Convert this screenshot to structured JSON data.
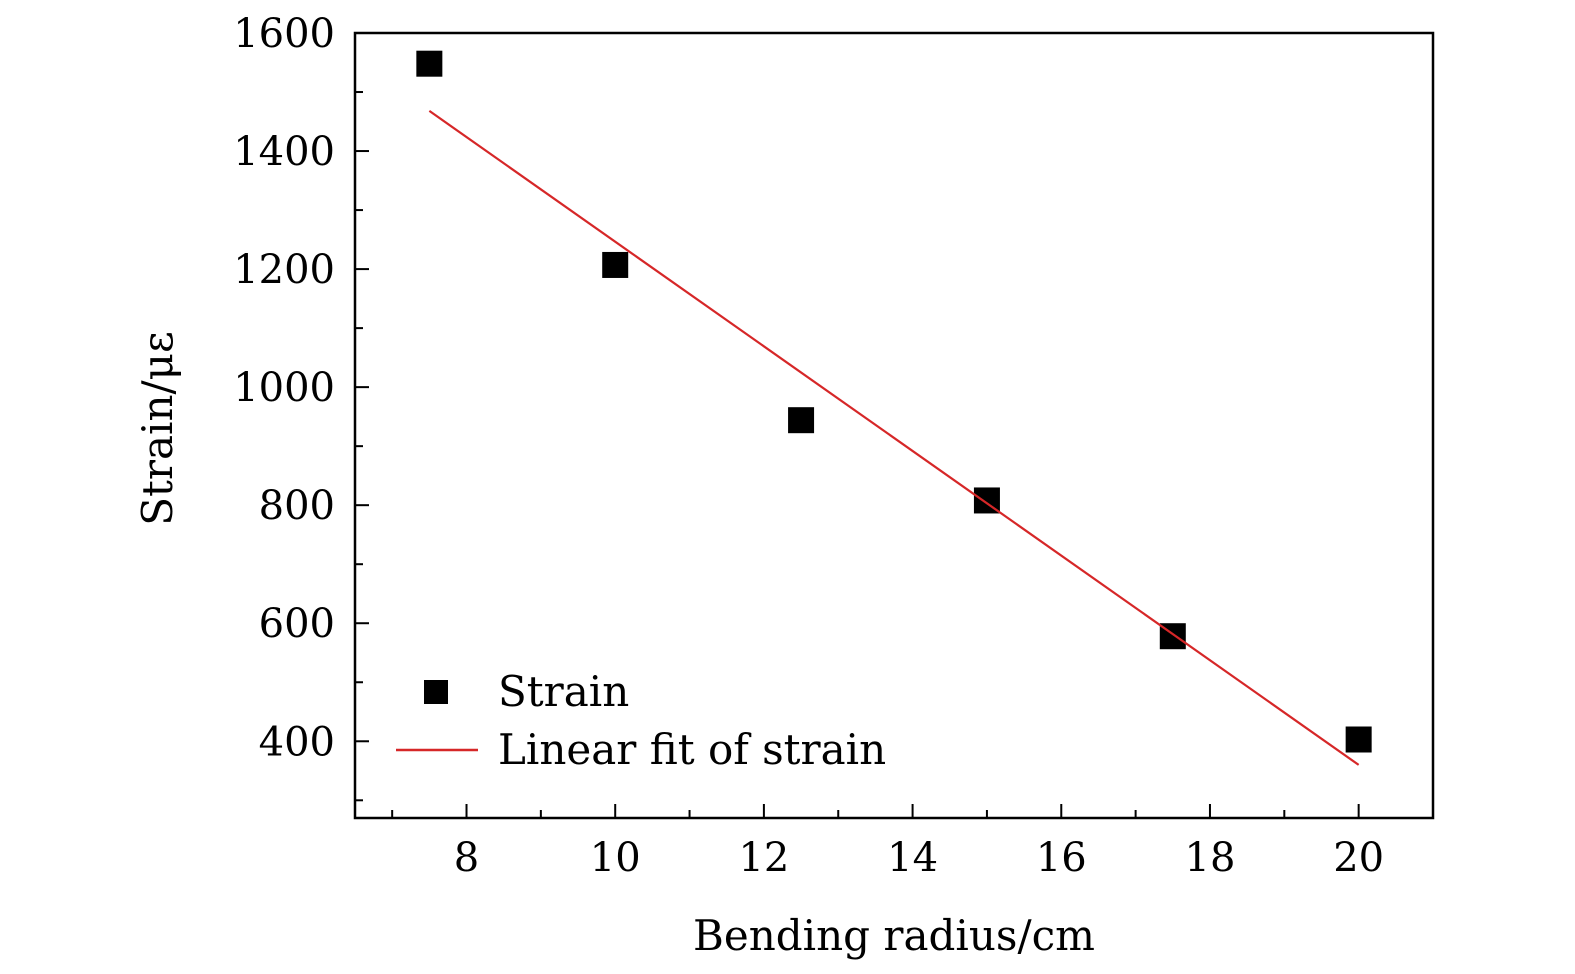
{
  "chart_data": {
    "type": "scatter",
    "title": "",
    "xlabel": "Bending radius/cm",
    "ylabel": "Strain/με",
    "xlim": [
      6.5,
      21
    ],
    "ylim": [
      270,
      1600
    ],
    "xticks": [
      8,
      10,
      12,
      14,
      16,
      18,
      20
    ],
    "yticks": [
      400,
      600,
      800,
      1000,
      1200,
      1400,
      1600
    ],
    "x_minor_step": 1,
    "y_minor_step": 100,
    "grid": false,
    "legend_position": "bottom-left",
    "series": [
      {
        "name": "Strain",
        "kind": "scatter",
        "marker": "square",
        "color": "#000000",
        "x": [
          7.5,
          10,
          12.5,
          15,
          17.5,
          20
        ],
        "y": [
          1548,
          1207,
          944,
          808,
          578,
          403
        ]
      },
      {
        "name": "Linear fit of strain",
        "kind": "line",
        "color": "#d62728",
        "x": [
          7.5,
          20
        ],
        "y": [
          1468,
          360
        ]
      }
    ]
  }
}
